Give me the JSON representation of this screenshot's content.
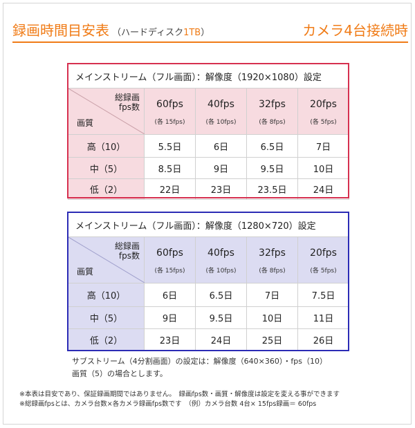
{
  "header": {
    "title": "録画時間目安表",
    "subtitle_pre": "（ハードディスク",
    "subtitle_hl": "1TB",
    "subtitle_post": "）",
    "right_title": "カメラ4台接続時"
  },
  "tables": [
    {
      "caption": "メインストリーム（フル画面）：解像度（1920×1080）設定",
      "corner_top": "総録画\nfps数",
      "corner_bottom": "画質",
      "columns": [
        {
          "fps": "60fps",
          "each": "(各 15fps)"
        },
        {
          "fps": "40fps",
          "each": "(各 10fps)"
        },
        {
          "fps": "32fps",
          "each": "(各 8fps)"
        },
        {
          "fps": "20fps",
          "each": "(各 5fps)"
        }
      ],
      "rows": [
        {
          "label": "高（10）",
          "values": [
            "5.5日",
            "6日",
            "6.5日",
            "7日"
          ]
        },
        {
          "label": "中（5）",
          "values": [
            "8.5日",
            "9日",
            "9.5日",
            "10日"
          ]
        },
        {
          "label": "低（2）",
          "values": [
            "22日",
            "23日",
            "23.5日",
            "24日"
          ]
        }
      ],
      "accent": "#d6304f"
    },
    {
      "caption": "メインストリーム（フル画面）：解像度（1280×720）設定",
      "corner_top": "総録画\nfps数",
      "corner_bottom": "画質",
      "columns": [
        {
          "fps": "60fps",
          "each": "(各 15fps)"
        },
        {
          "fps": "40fps",
          "each": "(各 10fps)"
        },
        {
          "fps": "32fps",
          "each": "(各 8fps)"
        },
        {
          "fps": "20fps",
          "each": "(各 5fps)"
        }
      ],
      "rows": [
        {
          "label": "高（10）",
          "values": [
            "6日",
            "6.5日",
            "7日",
            "7.5日"
          ]
        },
        {
          "label": "中（5）",
          "values": [
            "9日",
            "9.5日",
            "10日",
            "11日"
          ]
        },
        {
          "label": "低（2）",
          "values": [
            "23日",
            "24日",
            "25日",
            "26日"
          ]
        }
      ],
      "accent": "#2b2bb5"
    }
  ],
  "substream_note": {
    "line1": "サブストリーム（4分割画面）の設定は：解像度（640×360）・fps（10）",
    "line2": "画質（5）の場合とします。"
  },
  "footnotes": {
    "line1": "※本表は目安であり、保証録画期間ではありません。　録画fps数・画質・解像度は設定を変える事ができます",
    "line2": "※総録画fpsとは、カメラ台数×各カメラ録画fps数です　（例）カメラ台数 4台× 15fps録画＝ 60fps"
  },
  "colors": {
    "brand": "#f07b16",
    "table1_accent": "#d6304f",
    "table1_fill": "#f7dbe0",
    "table2_accent": "#2b2bb5",
    "table2_fill": "#dcdcf2"
  }
}
